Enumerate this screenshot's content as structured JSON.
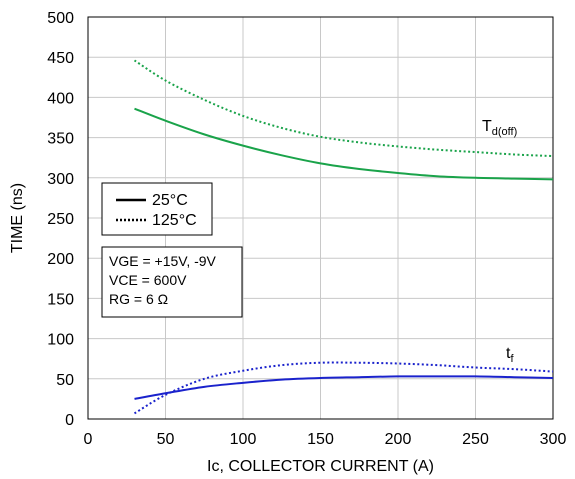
{
  "chart_data": {
    "type": "line",
    "xlabel": "Ic, COLLECTOR CURRENT (A)",
    "ylabel": "TIME (ns)",
    "xlim": [
      0,
      300
    ],
    "ylim": [
      0,
      500
    ],
    "xticks": [
      0,
      50,
      100,
      150,
      200,
      250,
      300
    ],
    "yticks": [
      0,
      50,
      100,
      150,
      200,
      250,
      300,
      350,
      400,
      450,
      500
    ],
    "grid": true,
    "legend": {
      "placement": "left-middle",
      "entries": [
        {
          "label": "25°C",
          "style": "solid"
        },
        {
          "label": "125°C",
          "style": "dotted"
        }
      ]
    },
    "conditions": [
      "VGE = +15V, -9V",
      "VCE = 600V",
      "RG = 6 Ω"
    ],
    "curve_labels": [
      {
        "main": "T",
        "sub": "d(off)",
        "series_group": "td_off"
      },
      {
        "main": "t",
        "sub": "f",
        "series_group": "tf"
      }
    ],
    "series": [
      {
        "group": "td_off",
        "style": "solid",
        "color": "#1aa34a",
        "x": [
          30,
          50,
          75,
          100,
          125,
          150,
          175,
          200,
          225,
          250,
          275,
          300
        ],
        "values": [
          386,
          371,
          354,
          340,
          328,
          318,
          311,
          306,
          302,
          300,
          299,
          298
        ]
      },
      {
        "group": "td_off",
        "style": "dotted",
        "color": "#1aa34a",
        "x": [
          30,
          50,
          75,
          100,
          125,
          150,
          175,
          200,
          225,
          250,
          275,
          300
        ],
        "values": [
          446,
          421,
          397,
          377,
          362,
          351,
          344,
          339,
          335,
          332,
          329,
          327
        ]
      },
      {
        "group": "tf",
        "style": "solid",
        "color": "#1a22cc",
        "x": [
          30,
          50,
          75,
          100,
          125,
          150,
          175,
          200,
          225,
          250,
          275,
          300
        ],
        "values": [
          25,
          32,
          40,
          45,
          49,
          51,
          52,
          53,
          53,
          53,
          52,
          51
        ]
      },
      {
        "group": "tf",
        "style": "dotted",
        "color": "#1a22cc",
        "x": [
          30,
          50,
          75,
          100,
          125,
          150,
          175,
          200,
          225,
          250,
          275,
          300
        ],
        "values": [
          7,
          30,
          50,
          60,
          67,
          70,
          70,
          69,
          67,
          64,
          62,
          59
        ]
      }
    ]
  }
}
